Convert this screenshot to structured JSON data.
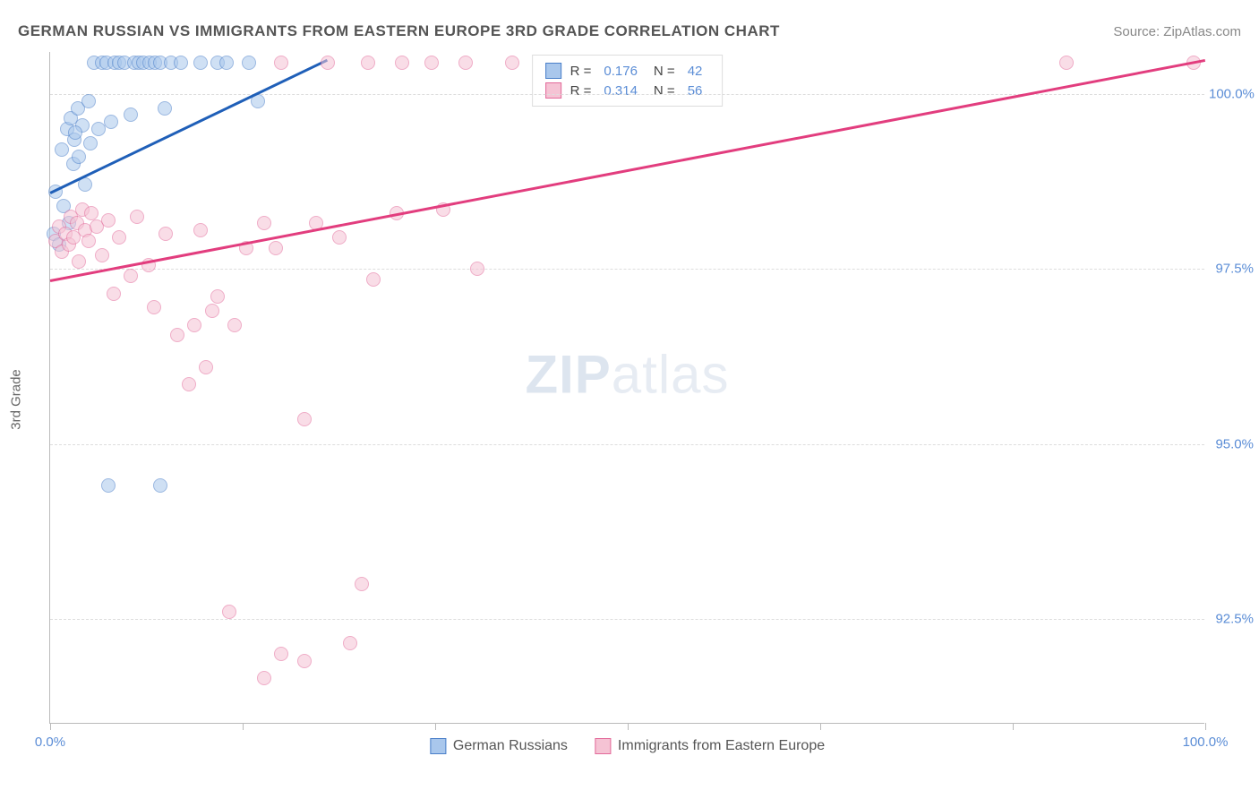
{
  "title": "GERMAN RUSSIAN VS IMMIGRANTS FROM EASTERN EUROPE 3RD GRADE CORRELATION CHART",
  "source_prefix": "Source: ",
  "source_link": "ZipAtlas.com",
  "y_axis_label": "3rd Grade",
  "watermark_bold": "ZIP",
  "watermark_light": "atlas",
  "chart": {
    "type": "scatter",
    "xlim": [
      0,
      100
    ],
    "ylim": [
      91.0,
      100.6
    ],
    "x_ticks": [
      0,
      16.67,
      33.33,
      50,
      66.67,
      83.33,
      100
    ],
    "x_tick_labels": {
      "0": "0.0%",
      "100": "100.0%"
    },
    "y_ticks": [
      92.5,
      95.0,
      97.5,
      100.0
    ],
    "y_tick_labels": [
      "92.5%",
      "95.0%",
      "97.5%",
      "100.0%"
    ],
    "background_color": "#ffffff",
    "grid_color": "#dddddd",
    "marker_radius": 8,
    "marker_opacity": 0.55,
    "line_width": 2.5,
    "series": [
      {
        "name": "German Russians",
        "fill_color": "#a9c7ec",
        "stroke_color": "#4a7fc9",
        "line_color": "#1f5fb8",
        "R": "0.176",
        "N": "42",
        "trend": {
          "x1": 0,
          "y1": 98.6,
          "x2": 24,
          "y2": 100.5
        },
        "points": [
          [
            0.3,
            98.0
          ],
          [
            0.5,
            98.6
          ],
          [
            0.8,
            97.85
          ],
          [
            1.0,
            99.2
          ],
          [
            1.2,
            98.4
          ],
          [
            1.5,
            99.5
          ],
          [
            1.6,
            98.15
          ],
          [
            1.8,
            99.65
          ],
          [
            2.0,
            99.0
          ],
          [
            2.1,
            99.35
          ],
          [
            2.4,
            99.8
          ],
          [
            2.5,
            99.1
          ],
          [
            2.8,
            99.55
          ],
          [
            3.0,
            98.7
          ],
          [
            3.3,
            99.9
          ],
          [
            3.5,
            99.3
          ],
          [
            3.8,
            100.45
          ],
          [
            4.2,
            99.5
          ],
          [
            4.5,
            100.45
          ],
          [
            4.9,
            100.45
          ],
          [
            5.3,
            99.6
          ],
          [
            5.6,
            100.45
          ],
          [
            6.0,
            100.45
          ],
          [
            6.4,
            100.45
          ],
          [
            7.0,
            99.7
          ],
          [
            7.3,
            100.45
          ],
          [
            7.7,
            100.45
          ],
          [
            8.1,
            100.45
          ],
          [
            8.6,
            100.45
          ],
          [
            9.1,
            100.45
          ],
          [
            9.5,
            100.45
          ],
          [
            9.9,
            99.8
          ],
          [
            10.5,
            100.45
          ],
          [
            11.3,
            100.45
          ],
          [
            13.0,
            100.45
          ],
          [
            14.5,
            100.45
          ],
          [
            15.3,
            100.45
          ],
          [
            17.2,
            100.45
          ],
          [
            18.0,
            99.9
          ],
          [
            5.0,
            94.4
          ],
          [
            9.5,
            94.4
          ],
          [
            2.2,
            99.45
          ]
        ]
      },
      {
        "name": "Immigrants from Eastern Europe",
        "fill_color": "#f5c3d4",
        "stroke_color": "#e36a9a",
        "line_color": "#e23d7e",
        "R": "0.314",
        "N": "56",
        "trend": {
          "x1": 0,
          "y1": 97.35,
          "x2": 100,
          "y2": 100.5
        },
        "points": [
          [
            0.5,
            97.9
          ],
          [
            0.8,
            98.1
          ],
          [
            1.0,
            97.75
          ],
          [
            1.3,
            98.0
          ],
          [
            1.6,
            97.85
          ],
          [
            1.8,
            98.25
          ],
          [
            2.0,
            97.95
          ],
          [
            2.3,
            98.15
          ],
          [
            2.5,
            97.6
          ],
          [
            2.8,
            98.35
          ],
          [
            3.0,
            98.05
          ],
          [
            3.3,
            97.9
          ],
          [
            3.6,
            98.3
          ],
          [
            4.0,
            98.1
          ],
          [
            4.5,
            97.7
          ],
          [
            5.0,
            98.2
          ],
          [
            5.5,
            97.15
          ],
          [
            6.0,
            97.95
          ],
          [
            7.0,
            97.4
          ],
          [
            7.5,
            98.25
          ],
          [
            8.5,
            97.55
          ],
          [
            9.0,
            96.95
          ],
          [
            10.0,
            98.0
          ],
          [
            11.0,
            96.55
          ],
          [
            12.0,
            95.85
          ],
          [
            12.5,
            96.7
          ],
          [
            13.5,
            96.1
          ],
          [
            14.0,
            96.9
          ],
          [
            14.5,
            97.1
          ],
          [
            16.0,
            96.7
          ],
          [
            17.0,
            97.8
          ],
          [
            18.5,
            98.15
          ],
          [
            19.5,
            97.8
          ],
          [
            20.0,
            100.45
          ],
          [
            22.0,
            95.35
          ],
          [
            23.0,
            98.15
          ],
          [
            24.0,
            100.45
          ],
          [
            25.0,
            97.95
          ],
          [
            26.0,
            92.15
          ],
          [
            27.5,
            100.45
          ],
          [
            28.0,
            97.35
          ],
          [
            30.0,
            98.3
          ],
          [
            30.5,
            100.45
          ],
          [
            33.0,
            100.45
          ],
          [
            34.0,
            98.35
          ],
          [
            36.0,
            100.45
          ],
          [
            37.0,
            97.5
          ],
          [
            40.0,
            100.45
          ],
          [
            15.5,
            92.6
          ],
          [
            18.5,
            91.65
          ],
          [
            20.0,
            92.0
          ],
          [
            22.0,
            91.9
          ],
          [
            27.0,
            93.0
          ],
          [
            88.0,
            100.45
          ],
          [
            99.0,
            100.45
          ],
          [
            13.0,
            98.05
          ]
        ]
      }
    ]
  },
  "legend_top": {
    "r_label": "R =",
    "n_label": "N ="
  },
  "legend_bottom": [
    "German Russians",
    "Immigrants from Eastern Europe"
  ]
}
